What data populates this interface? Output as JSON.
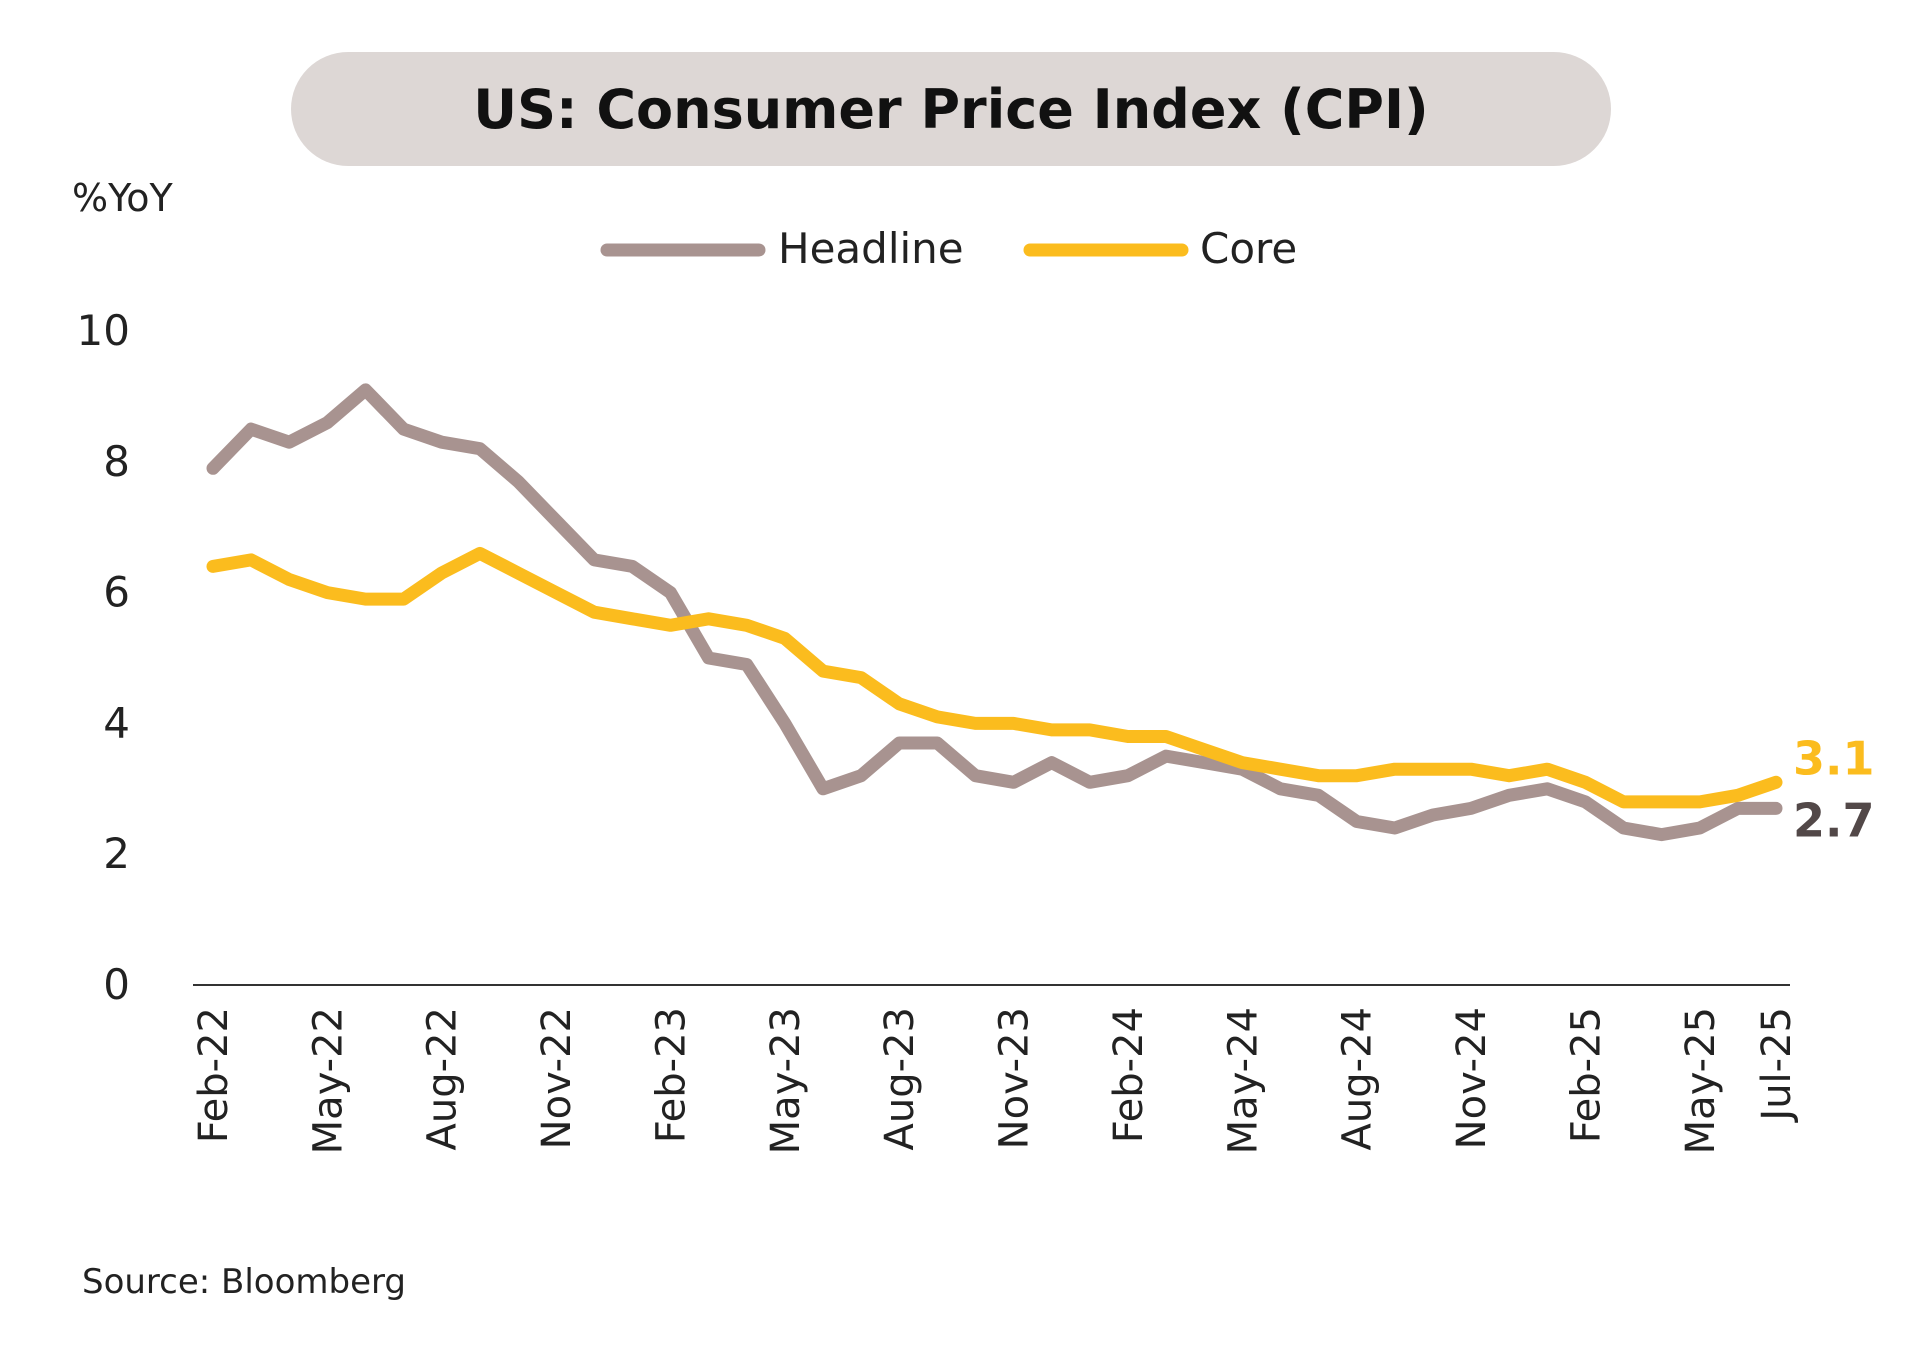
{
  "chart_data": {
    "type": "line",
    "title": "US: Consumer Price Index (CPI)",
    "ylabel": "%YoY",
    "xlabel": "",
    "source": "Source: Bloomberg",
    "ylim": [
      0,
      10
    ],
    "yticks": [
      "0",
      "2",
      "4",
      "6",
      "8",
      "10"
    ],
    "ytick_values": [
      0,
      2,
      4,
      6,
      8,
      10
    ],
    "grid": false,
    "legend_position": "top-center",
    "x": [
      "Feb-22",
      "Mar-22",
      "Apr-22",
      "May-22",
      "Jun-22",
      "Jul-22",
      "Aug-22",
      "Sep-22",
      "Oct-22",
      "Nov-22",
      "Dec-22",
      "Jan-23",
      "Feb-23",
      "Mar-23",
      "Apr-23",
      "May-23",
      "Jun-23",
      "Jul-23",
      "Aug-23",
      "Sep-23",
      "Oct-23",
      "Nov-23",
      "Dec-23",
      "Jan-24",
      "Feb-24",
      "Mar-24",
      "Apr-24",
      "May-24",
      "Jun-24",
      "Jul-24",
      "Aug-24",
      "Sep-24",
      "Oct-24",
      "Nov-24",
      "Dec-24",
      "Jan-25",
      "Feb-25",
      "Mar-25",
      "Apr-25",
      "May-25",
      "Jun-25",
      "Jul-25"
    ],
    "xticks": [
      "Feb-22",
      "May-22",
      "Aug-22",
      "Nov-22",
      "Feb-23",
      "May-23",
      "Aug-23",
      "Nov-23",
      "Feb-24",
      "May-24",
      "Aug-24",
      "Nov-24",
      "Feb-25",
      "May-25",
      "Jul-25"
    ],
    "series": [
      {
        "name": "Headline",
        "color": "#a89390",
        "values": [
          7.9,
          8.5,
          8.3,
          8.6,
          9.1,
          8.5,
          8.3,
          8.2,
          7.7,
          7.1,
          6.5,
          6.4,
          6.0,
          5.0,
          4.9,
          4.0,
          3.0,
          3.2,
          3.7,
          3.7,
          3.2,
          3.1,
          3.4,
          3.1,
          3.2,
          3.5,
          3.4,
          3.3,
          3.0,
          2.9,
          2.5,
          2.4,
          2.6,
          2.7,
          2.9,
          3.0,
          2.8,
          2.4,
          2.3,
          2.4,
          2.7,
          2.7
        ],
        "end_label": "2.7",
        "end_label_color": "#524848"
      },
      {
        "name": "Core",
        "color": "#fbbc1e",
        "values": [
          6.4,
          6.5,
          6.2,
          6.0,
          5.9,
          5.9,
          6.3,
          6.6,
          6.3,
          6.0,
          5.7,
          5.6,
          5.5,
          5.6,
          5.5,
          5.3,
          4.8,
          4.7,
          4.3,
          4.1,
          4.0,
          4.0,
          3.9,
          3.9,
          3.8,
          3.8,
          3.6,
          3.4,
          3.3,
          3.2,
          3.2,
          3.3,
          3.3,
          3.3,
          3.2,
          3.3,
          3.1,
          2.8,
          2.8,
          2.8,
          2.9,
          3.1
        ],
        "end_label": "3.1",
        "end_label_color": "#fbbc1e"
      }
    ]
  }
}
